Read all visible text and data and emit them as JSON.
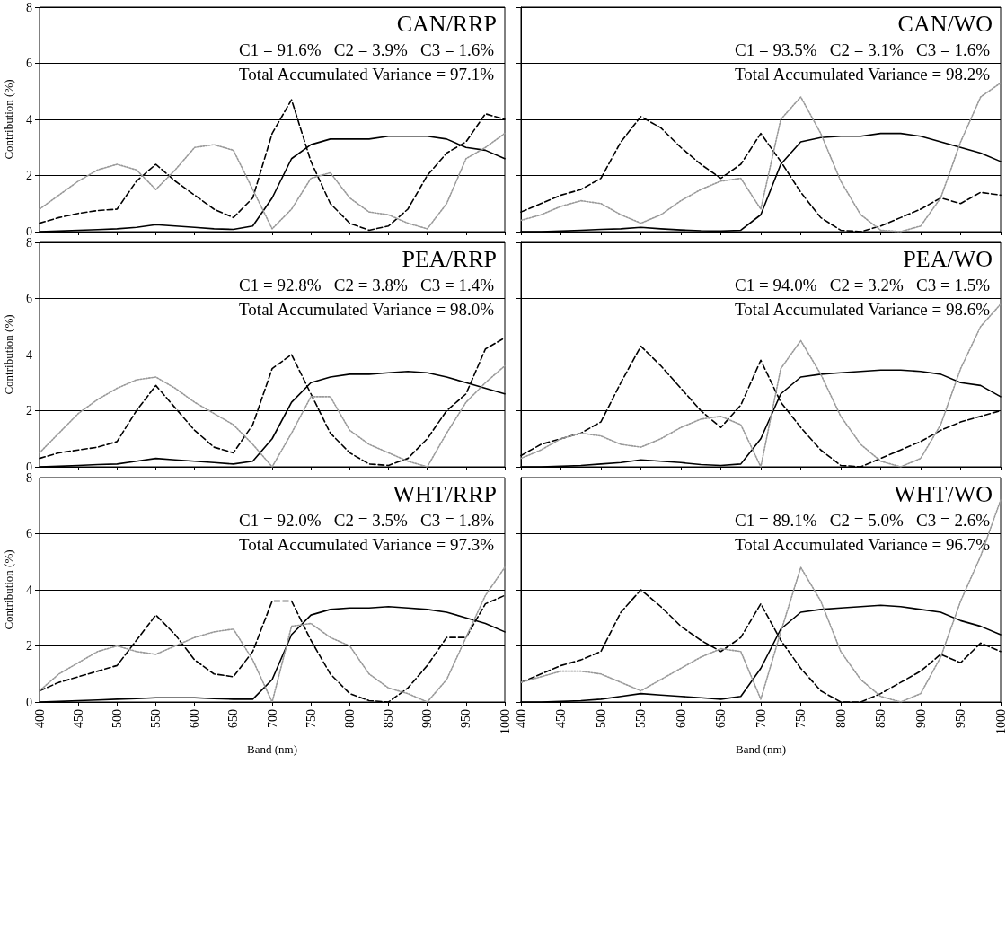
{
  "chart_data": [
    {
      "type": "line",
      "title": "CAN/RRP",
      "annotations": [
        "C1 = 91.6%   C2 = 3.9%   C3 = 1.6%",
        "Total Accumulated Variance = 97.1%"
      ],
      "ylabel": "Contribution (%)",
      "x": [
        400,
        425,
        450,
        475,
        500,
        525,
        550,
        575,
        600,
        625,
        650,
        675,
        700,
        725,
        750,
        775,
        800,
        825,
        850,
        875,
        900,
        925,
        950,
        975,
        1000
      ],
      "xlim": [
        400,
        1000
      ],
      "xticks": [
        400,
        450,
        500,
        550,
        600,
        650,
        700,
        750,
        800,
        850,
        900,
        950,
        1000
      ],
      "ylim": [
        0,
        8
      ],
      "yticks": [
        0,
        2,
        4,
        6,
        8
      ],
      "grid": "y",
      "marker": "none",
      "tick_labels": "y",
      "series": [
        {
          "color": "#000000",
          "line_style": "solid",
          "values": [
            0,
            0.02,
            0.05,
            0.07,
            0.1,
            0.15,
            0.25,
            0.2,
            0.15,
            0.1,
            0.08,
            0.2,
            1.2,
            2.6,
            3.1,
            3.3,
            3.3,
            3.3,
            3.4,
            3.4,
            3.4,
            3.3,
            3.0,
            2.9,
            2.6
          ]
        },
        {
          "color": "#000000",
          "line_style": "dashed",
          "values": [
            0.3,
            0.5,
            0.65,
            0.75,
            0.8,
            1.8,
            2.4,
            1.8,
            1.3,
            0.8,
            0.5,
            1.2,
            3.5,
            4.7,
            2.5,
            1.0,
            0.3,
            0.05,
            0.2,
            0.8,
            2.0,
            2.8,
            3.2,
            4.2,
            4.0
          ]
        },
        {
          "color": "#999999",
          "line_style": "dotted",
          "values": [
            0.8,
            1.3,
            1.8,
            2.2,
            2.4,
            2.2,
            1.5,
            2.2,
            3.0,
            3.1,
            2.9,
            1.5,
            0.1,
            0.8,
            1.9,
            2.1,
            1.2,
            0.7,
            0.6,
            0.3,
            0.1,
            1.0,
            2.6,
            3.0,
            3.5
          ]
        }
      ]
    },
    {
      "type": "line",
      "title": "CAN/WO",
      "annotations": [
        "C1 = 93.5%   C2 = 3.1%   C3 = 1.6%",
        "Total Accumulated Variance = 98.2%"
      ],
      "x": [
        400,
        425,
        450,
        475,
        500,
        525,
        550,
        575,
        600,
        625,
        650,
        675,
        700,
        725,
        750,
        775,
        800,
        825,
        850,
        875,
        900,
        925,
        950,
        975,
        1000
      ],
      "xlim": [
        400,
        1000
      ],
      "xticks": [
        400,
        450,
        500,
        550,
        600,
        650,
        700,
        750,
        800,
        850,
        900,
        950,
        1000
      ],
      "ylim": [
        0,
        8
      ],
      "yticks": [
        0,
        2,
        4,
        6,
        8
      ],
      "grid": "y",
      "marker": "none",
      "tick_labels": false,
      "series": [
        {
          "color": "#000000",
          "line_style": "solid",
          "values": [
            0,
            0,
            0.02,
            0.05,
            0.08,
            0.1,
            0.15,
            0.1,
            0.06,
            0.03,
            0.02,
            0.05,
            0.6,
            2.4,
            3.2,
            3.35,
            3.4,
            3.4,
            3.5,
            3.5,
            3.4,
            3.2,
            3.0,
            2.8,
            2.5
          ]
        },
        {
          "color": "#000000",
          "line_style": "dashed",
          "values": [
            0.7,
            1.0,
            1.3,
            1.5,
            1.9,
            3.2,
            4.1,
            3.7,
            3.0,
            2.4,
            1.9,
            2.4,
            3.5,
            2.5,
            1.4,
            0.5,
            0.05,
            0,
            0.2,
            0.5,
            0.8,
            1.2,
            1.0,
            1.4,
            1.3
          ]
        },
        {
          "color": "#999999",
          "line_style": "dotted",
          "values": [
            0.4,
            0.6,
            0.9,
            1.1,
            1.0,
            0.6,
            0.3,
            0.6,
            1.1,
            1.5,
            1.8,
            1.9,
            0.8,
            4.0,
            4.8,
            3.5,
            1.8,
            0.6,
            0.05,
            0,
            0.2,
            1.2,
            3.2,
            4.8,
            5.3
          ]
        }
      ]
    },
    {
      "type": "line",
      "title": "PEA/RRP",
      "annotations": [
        "C1 = 92.8%   C2 = 3.8%   C3 = 1.4%",
        "Total Accumulated Variance = 98.0%"
      ],
      "ylabel": "Contribution (%)",
      "x": [
        400,
        425,
        450,
        475,
        500,
        525,
        550,
        575,
        600,
        625,
        650,
        675,
        700,
        725,
        750,
        775,
        800,
        825,
        850,
        875,
        900,
        925,
        950,
        975,
        1000
      ],
      "xlim": [
        400,
        1000
      ],
      "xticks": [
        400,
        450,
        500,
        550,
        600,
        650,
        700,
        750,
        800,
        850,
        900,
        950,
        1000
      ],
      "ylim": [
        0,
        8
      ],
      "yticks": [
        0,
        2,
        4,
        6,
        8
      ],
      "grid": "y",
      "marker": "none",
      "tick_labels": "y",
      "series": [
        {
          "color": "#000000",
          "line_style": "solid",
          "values": [
            0,
            0.02,
            0.05,
            0.08,
            0.1,
            0.2,
            0.3,
            0.25,
            0.2,
            0.15,
            0.1,
            0.2,
            1.0,
            2.3,
            3.0,
            3.2,
            3.3,
            3.3,
            3.35,
            3.4,
            3.35,
            3.2,
            3.0,
            2.8,
            2.6
          ]
        },
        {
          "color": "#000000",
          "line_style": "dashed",
          "values": [
            0.3,
            0.5,
            0.6,
            0.7,
            0.9,
            2.0,
            2.9,
            2.1,
            1.3,
            0.7,
            0.5,
            1.5,
            3.5,
            4.0,
            2.6,
            1.2,
            0.5,
            0.1,
            0.05,
            0.3,
            1.0,
            2.0,
            2.6,
            4.2,
            4.6
          ]
        },
        {
          "color": "#999999",
          "line_style": "dotted",
          "values": [
            0.5,
            1.2,
            1.9,
            2.4,
            2.8,
            3.1,
            3.2,
            2.8,
            2.3,
            1.9,
            1.5,
            0.8,
            0,
            1.2,
            2.5,
            2.5,
            1.3,
            0.8,
            0.5,
            0.2,
            0,
            1.2,
            2.3,
            3.0,
            3.6
          ]
        }
      ]
    },
    {
      "type": "line",
      "title": "PEA/WO",
      "annotations": [
        "C1 = 94.0%   C2 = 3.2%   C3 = 1.5%",
        "Total Accumulated Variance = 98.6%"
      ],
      "x": [
        400,
        425,
        450,
        475,
        500,
        525,
        550,
        575,
        600,
        625,
        650,
        675,
        700,
        725,
        750,
        775,
        800,
        825,
        850,
        875,
        900,
        925,
        950,
        975,
        1000
      ],
      "xlim": [
        400,
        1000
      ],
      "xticks": [
        400,
        450,
        500,
        550,
        600,
        650,
        700,
        750,
        800,
        850,
        900,
        950,
        1000
      ],
      "ylim": [
        0,
        8
      ],
      "yticks": [
        0,
        2,
        4,
        6,
        8
      ],
      "grid": "y",
      "marker": "none",
      "tick_labels": false,
      "series": [
        {
          "color": "#000000",
          "line_style": "solid",
          "values": [
            0,
            0,
            0.02,
            0.05,
            0.1,
            0.15,
            0.25,
            0.2,
            0.15,
            0.08,
            0.05,
            0.1,
            1.0,
            2.6,
            3.2,
            3.3,
            3.35,
            3.4,
            3.45,
            3.45,
            3.4,
            3.3,
            3.0,
            2.9,
            2.5
          ]
        },
        {
          "color": "#000000",
          "line_style": "dashed",
          "values": [
            0.4,
            0.8,
            1.0,
            1.2,
            1.6,
            3.0,
            4.3,
            3.6,
            2.8,
            2.0,
            1.4,
            2.2,
            3.8,
            2.3,
            1.4,
            0.6,
            0.05,
            0,
            0.3,
            0.6,
            0.9,
            1.3,
            1.6,
            1.8,
            2.0
          ]
        },
        {
          "color": "#999999",
          "line_style": "dotted",
          "values": [
            0.3,
            0.6,
            1.0,
            1.2,
            1.1,
            0.8,
            0.7,
            1.0,
            1.4,
            1.7,
            1.8,
            1.5,
            0,
            3.5,
            4.5,
            3.3,
            1.8,
            0.8,
            0.2,
            0,
            0.3,
            1.5,
            3.5,
            5.0,
            5.8
          ]
        }
      ]
    },
    {
      "type": "line",
      "title": "WHT/RRP",
      "annotations": [
        "C1 = 92.0%   C2 = 3.5%   C3 = 1.8%",
        "Total Accumulated Variance = 97.3%"
      ],
      "xlabel": "Band (nm)",
      "ylabel": "Contribution (%)",
      "x": [
        400,
        425,
        450,
        475,
        500,
        525,
        550,
        575,
        600,
        625,
        650,
        675,
        700,
        725,
        750,
        775,
        800,
        825,
        850,
        875,
        900,
        925,
        950,
        975,
        1000
      ],
      "xlim": [
        400,
        1000
      ],
      "xticks": [
        400,
        450,
        500,
        550,
        600,
        650,
        700,
        750,
        800,
        850,
        900,
        950,
        1000
      ],
      "ylim": [
        0,
        8
      ],
      "yticks": [
        0,
        2,
        4,
        6,
        8
      ],
      "grid": "y",
      "marker": "none",
      "series": [
        {
          "color": "#000000",
          "line_style": "solid",
          "values": [
            0,
            0.02,
            0.05,
            0.07,
            0.1,
            0.12,
            0.15,
            0.15,
            0.15,
            0.12,
            0.1,
            0.1,
            0.8,
            2.4,
            3.1,
            3.3,
            3.35,
            3.35,
            3.4,
            3.35,
            3.3,
            3.2,
            3.0,
            2.8,
            2.5
          ]
        },
        {
          "color": "#000000",
          "line_style": "dashed",
          "values": [
            0.4,
            0.7,
            0.9,
            1.1,
            1.3,
            2.2,
            3.1,
            2.4,
            1.5,
            1.0,
            0.9,
            1.8,
            3.6,
            3.6,
            2.2,
            1.0,
            0.3,
            0.05,
            0,
            0.5,
            1.3,
            2.3,
            2.3,
            3.5,
            3.8
          ]
        },
        {
          "color": "#999999",
          "line_style": "dotted",
          "values": [
            0.4,
            1.0,
            1.4,
            1.8,
            2.0,
            1.8,
            1.7,
            2.0,
            2.3,
            2.5,
            2.6,
            1.5,
            0,
            2.7,
            2.8,
            2.3,
            2.0,
            1.0,
            0.5,
            0.3,
            0,
            0.8,
            2.3,
            3.8,
            4.8
          ]
        }
      ]
    },
    {
      "type": "line",
      "title": "WHT/WO",
      "annotations": [
        "C1 = 89.1%   C2 = 5.0%   C3 = 2.6%",
        "Total Accumulated Variance = 96.7%"
      ],
      "xlabel": "Band (nm)",
      "x": [
        400,
        425,
        450,
        475,
        500,
        525,
        550,
        575,
        600,
        625,
        650,
        675,
        700,
        725,
        750,
        775,
        800,
        825,
        850,
        875,
        900,
        925,
        950,
        975,
        1000
      ],
      "xlim": [
        400,
        1000
      ],
      "xticks": [
        400,
        450,
        500,
        550,
        600,
        650,
        700,
        750,
        800,
        850,
        900,
        950,
        1000
      ],
      "ylim": [
        0,
        8
      ],
      "yticks": [
        0,
        2,
        4,
        6,
        8
      ],
      "grid": "y",
      "marker": "none",
      "tick_labels": "x",
      "series": [
        {
          "color": "#000000",
          "line_style": "solid",
          "values": [
            0,
            0,
            0.02,
            0.05,
            0.1,
            0.2,
            0.3,
            0.25,
            0.2,
            0.15,
            0.1,
            0.2,
            1.2,
            2.6,
            3.2,
            3.3,
            3.35,
            3.4,
            3.45,
            3.4,
            3.3,
            3.2,
            2.9,
            2.7,
            2.4
          ]
        },
        {
          "color": "#000000",
          "line_style": "dashed",
          "values": [
            0.7,
            1.0,
            1.3,
            1.5,
            1.8,
            3.2,
            4.0,
            3.4,
            2.7,
            2.2,
            1.8,
            2.3,
            3.5,
            2.2,
            1.2,
            0.4,
            0,
            0,
            0.3,
            0.7,
            1.1,
            1.7,
            1.4,
            2.1,
            1.8
          ]
        },
        {
          "color": "#999999",
          "line_style": "dotted",
          "values": [
            0.7,
            0.9,
            1.1,
            1.1,
            1.0,
            0.7,
            0.4,
            0.8,
            1.2,
            1.6,
            1.9,
            1.8,
            0.1,
            2.5,
            4.8,
            3.6,
            1.8,
            0.8,
            0.2,
            0,
            0.3,
            1.6,
            3.6,
            5.2,
            7.2
          ]
        }
      ]
    }
  ]
}
